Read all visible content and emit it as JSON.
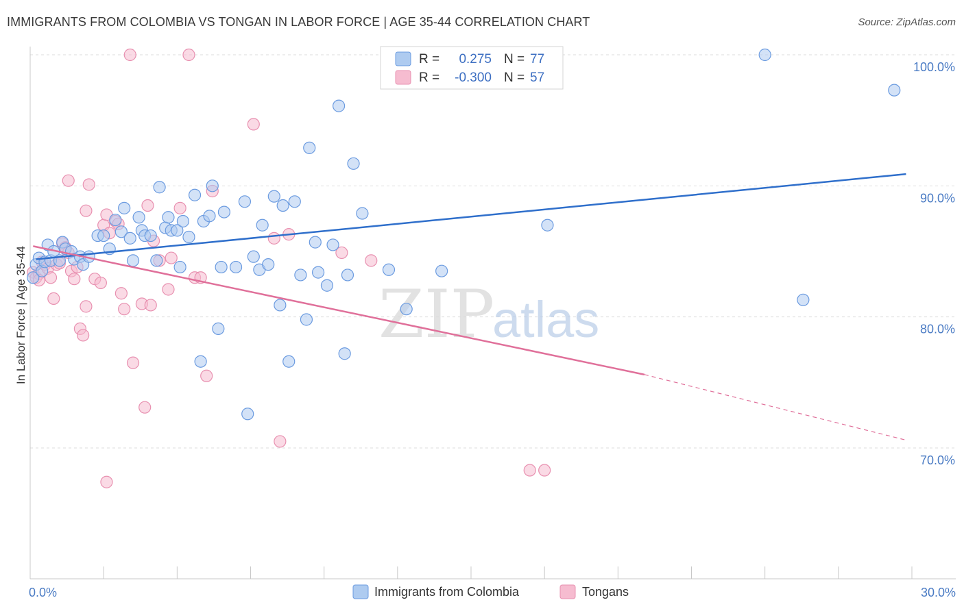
{
  "title": "IMMIGRANTS FROM COLOMBIA VS TONGAN IN LABOR FORCE | AGE 35-44 CORRELATION CHART",
  "source": "Source: ZipAtlas.com",
  "watermark": {
    "zip": "ZIP",
    "atlas": "atlas"
  },
  "colors": {
    "blue_fill": "#aecbf0",
    "blue_stroke": "#6b9be0",
    "blue_line": "#2f6fcb",
    "pink_fill": "#f6bcd0",
    "pink_stroke": "#e890b0",
    "pink_line": "#e0709a",
    "grid": "#dddddd",
    "tick_label": "#4a7bc4"
  },
  "legend_top": {
    "r_label": "R =",
    "n_label": "N =",
    "entries": [
      {
        "r": "0.275",
        "n": "77"
      },
      {
        "r": "-0.300",
        "n": "57"
      }
    ]
  },
  "chart_data": {
    "type": "scatter",
    "title": "IMMIGRANTS FROM COLOMBIA VS TONGAN IN LABOR FORCE | AGE 35-44 CORRELATION CHART",
    "xlabel": "",
    "ylabel": "In Labor Force | Age 35-44",
    "xlim": [
      0,
      30
    ],
    "ylim": [
      60,
      102
    ],
    "x_tick_labels": [
      {
        "value": 0,
        "label": "0.0%"
      },
      {
        "value": 30,
        "label": "30.0%"
      }
    ],
    "y_tick_labels": [
      {
        "value": 100,
        "label": "100.0%"
      },
      {
        "value": 90,
        "label": "90.0%"
      },
      {
        "value": 80,
        "label": "80.0%"
      },
      {
        "value": 70,
        "label": "70.0%"
      }
    ],
    "grid": true,
    "legend_position": "top-center",
    "series": [
      {
        "name": "Immigrants from Colombia",
        "color": "#6b9be0",
        "trend": {
          "x": [
            0.2,
            29.8
          ],
          "y": [
            84.4,
            90.9
          ]
        },
        "points": [
          [
            0.1,
            83
          ],
          [
            0.2,
            84
          ],
          [
            0.3,
            84.5
          ],
          [
            0.4,
            83.5
          ],
          [
            0.5,
            84.2
          ],
          [
            0.6,
            85.5
          ],
          [
            0.7,
            84.3
          ],
          [
            0.8,
            85
          ],
          [
            1.0,
            84.3
          ],
          [
            1.1,
            85.7
          ],
          [
            1.2,
            85.2
          ],
          [
            1.4,
            85
          ],
          [
            1.5,
            84.4
          ],
          [
            1.7,
            84.6
          ],
          [
            1.8,
            84
          ],
          [
            2.0,
            84.6
          ],
          [
            2.3,
            86.2
          ],
          [
            2.5,
            86.2
          ],
          [
            2.7,
            85.2
          ],
          [
            2.9,
            87.4
          ],
          [
            3.1,
            86.5
          ],
          [
            3.2,
            88.3
          ],
          [
            3.4,
            86
          ],
          [
            3.5,
            84.3
          ],
          [
            3.7,
            87.6
          ],
          [
            3.8,
            86.6
          ],
          [
            3.9,
            86.2
          ],
          [
            4.1,
            86.2
          ],
          [
            4.3,
            84.3
          ],
          [
            4.4,
            89.9
          ],
          [
            4.6,
            86.8
          ],
          [
            4.7,
            87.6
          ],
          [
            4.8,
            86.6
          ],
          [
            5.0,
            86.6
          ],
          [
            5.1,
            83.8
          ],
          [
            5.2,
            87.3
          ],
          [
            5.4,
            86.1
          ],
          [
            5.6,
            89.3
          ],
          [
            5.8,
            76.6
          ],
          [
            5.9,
            87.3
          ],
          [
            6.1,
            87.7
          ],
          [
            6.2,
            90
          ],
          [
            6.4,
            79.1
          ],
          [
            6.5,
            83.8
          ],
          [
            6.6,
            88
          ],
          [
            7.0,
            83.8
          ],
          [
            7.3,
            88.8
          ],
          [
            7.4,
            72.6
          ],
          [
            7.6,
            84.6
          ],
          [
            7.8,
            83.6
          ],
          [
            7.9,
            87
          ],
          [
            8.1,
            84
          ],
          [
            8.3,
            89.2
          ],
          [
            8.5,
            80.9
          ],
          [
            8.6,
            88.5
          ],
          [
            8.8,
            76.6
          ],
          [
            9.0,
            88.8
          ],
          [
            9.2,
            83.2
          ],
          [
            9.4,
            79.8
          ],
          [
            9.5,
            92.9
          ],
          [
            9.7,
            85.7
          ],
          [
            9.8,
            83.4
          ],
          [
            10.1,
            82.4
          ],
          [
            10.3,
            85.5
          ],
          [
            10.5,
            96.1
          ],
          [
            10.7,
            77.2
          ],
          [
            10.8,
            83.2
          ],
          [
            11.0,
            91.7
          ],
          [
            11.3,
            87.9
          ],
          [
            12.2,
            83.6
          ],
          [
            12.8,
            80.6
          ],
          [
            13.0,
            100
          ],
          [
            14.0,
            83.5
          ],
          [
            17.6,
            87
          ],
          [
            25.0,
            100
          ],
          [
            26.3,
            81.3
          ],
          [
            29.4,
            97.3
          ]
        ]
      },
      {
        "name": "Tongans",
        "color": "#e890b0",
        "trend": {
          "x": [
            0.1,
            20.9
          ],
          "y": [
            85.4,
            75.6
          ]
        },
        "trend_dashed": {
          "x": [
            20.9,
            29.8
          ],
          "y": [
            75.6,
            70.6
          ]
        },
        "points": [
          [
            0.1,
            83.4
          ],
          [
            0.2,
            83
          ],
          [
            0.3,
            83.3
          ],
          [
            0.4,
            84.2
          ],
          [
            0.5,
            84
          ],
          [
            0.6,
            83.7
          ],
          [
            0.7,
            83
          ],
          [
            0.8,
            81.4
          ],
          [
            0.9,
            84
          ],
          [
            1.0,
            84.1
          ],
          [
            1.1,
            85.6
          ],
          [
            1.2,
            85.3
          ],
          [
            1.3,
            90.4
          ],
          [
            1.4,
            83.5
          ],
          [
            1.5,
            82.9
          ],
          [
            1.6,
            83.8
          ],
          [
            1.7,
            79.1
          ],
          [
            1.8,
            78.6
          ],
          [
            1.9,
            80.8
          ],
          [
            2.0,
            90.1
          ],
          [
            2.2,
            82.9
          ],
          [
            2.4,
            82.6
          ],
          [
            2.5,
            87
          ],
          [
            2.6,
            67.4
          ],
          [
            2.7,
            86.4
          ],
          [
            2.9,
            87.3
          ],
          [
            3.0,
            87.1
          ],
          [
            3.1,
            81.8
          ],
          [
            3.2,
            80.6
          ],
          [
            3.5,
            76.5
          ],
          [
            3.8,
            81
          ],
          [
            3.9,
            73.1
          ],
          [
            4.0,
            88.5
          ],
          [
            4.1,
            80.9
          ],
          [
            4.2,
            85.8
          ],
          [
            4.4,
            84.3
          ],
          [
            4.7,
            82.1
          ],
          [
            4.8,
            84.5
          ],
          [
            5.1,
            88.3
          ],
          [
            5.6,
            83
          ],
          [
            5.8,
            83
          ],
          [
            6.0,
            75.5
          ],
          [
            6.2,
            89.6
          ],
          [
            7.6,
            94.7
          ],
          [
            8.3,
            86
          ],
          [
            8.5,
            70.5
          ],
          [
            8.8,
            86.3
          ],
          [
            10.6,
            84.9
          ],
          [
            11.6,
            84.3
          ],
          [
            17.0,
            68.3
          ],
          [
            17.5,
            68.3
          ],
          [
            3.4,
            100
          ],
          [
            5.4,
            100
          ],
          [
            1.9,
            88.1
          ],
          [
            2.6,
            87.8
          ],
          [
            0.3,
            82.8
          ],
          [
            1.3,
            84.9
          ]
        ]
      }
    ]
  }
}
